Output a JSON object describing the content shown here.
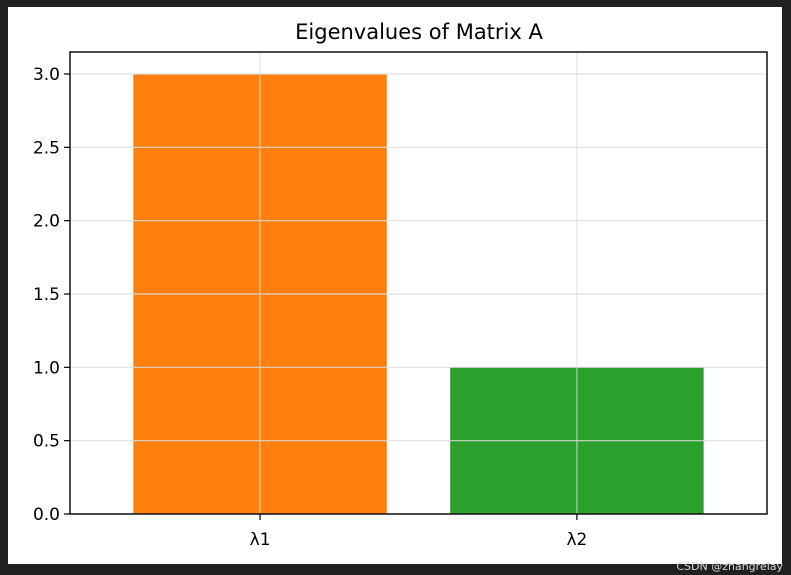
{
  "chart_data": {
    "type": "bar",
    "title": "Eigenvalues of Matrix A",
    "xlabel": "",
    "ylabel": "",
    "categories": [
      "λ1",
      "λ2"
    ],
    "values": [
      3.0,
      1.0
    ],
    "colors": [
      "#ff7f0e",
      "#2ca02c"
    ],
    "ylim": [
      0,
      3.15
    ],
    "yticks": [
      "0.0",
      "0.5",
      "1.0",
      "1.5",
      "2.0",
      "2.5",
      "3.0"
    ],
    "ytick_values": [
      0,
      0.5,
      1.0,
      1.5,
      2.0,
      2.5,
      3.0
    ],
    "grid": true
  },
  "watermark": "CSDN @zhangrelay"
}
